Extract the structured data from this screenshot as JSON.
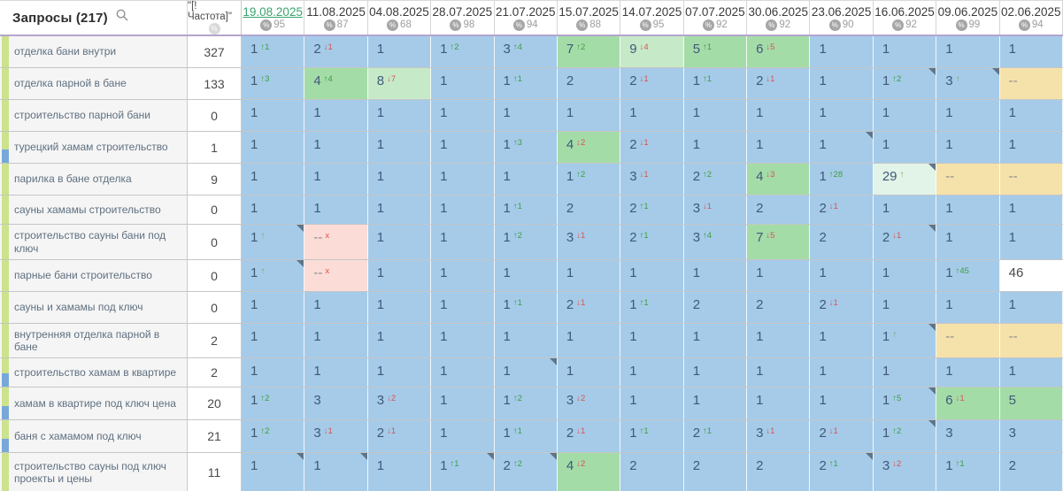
{
  "table": {
    "title": "Запросы (217)",
    "frequency_header": "\"[!Частота]\"",
    "columns": [
      {
        "date": "19.08.2025",
        "visibility": "95",
        "selected": true
      },
      {
        "date": "11.08.2025",
        "visibility": "87",
        "selected": false
      },
      {
        "date": "04.08.2025",
        "visibility": "68",
        "selected": false
      },
      {
        "date": "28.07.2025",
        "visibility": "98",
        "selected": false
      },
      {
        "date": "21.07.2025",
        "visibility": "94",
        "selected": false
      },
      {
        "date": "15.07.2025",
        "visibility": "88",
        "selected": false
      },
      {
        "date": "14.07.2025",
        "visibility": "95",
        "selected": false
      },
      {
        "date": "07.07.2025",
        "visibility": "92",
        "selected": false
      },
      {
        "date": "30.06.2025",
        "visibility": "92",
        "selected": false
      },
      {
        "date": "23.06.2025",
        "visibility": "90",
        "selected": false
      },
      {
        "date": "16.06.2025",
        "visibility": "92",
        "selected": false
      },
      {
        "date": "09.06.2025",
        "visibility": "99",
        "selected": false
      },
      {
        "date": "02.06.2025",
        "visibility": "94",
        "selected": false
      }
    ],
    "cell_format": "position|direction(u=improved,d=worsened,e=entered,x=dropped)|change|m=note-marker",
    "rows": [
      {
        "keyword": "отделка бани внутри",
        "frequency": "327",
        "tag": false,
        "cells": [
          "1|u|1|",
          "2|d|1|",
          "1|||",
          "1|u|2|",
          "3|u|4|",
          "7|u|2|",
          "9|d|4|",
          "5|u|1|",
          "6|d|5|",
          "1|||",
          "1|||",
          "1|||",
          "1|||"
        ]
      },
      {
        "keyword": "отделка парной в бане",
        "frequency": "133",
        "tag": false,
        "cells": [
          "1|u|3|",
          "4|u|4|",
          "8|d|7|",
          "1|||",
          "1|u|1|",
          "2|||",
          "2|d|1|",
          "1|u|1|",
          "2|d|1|",
          "1|||",
          "1|u|2|m",
          "3|e||m",
          "--|||"
        ]
      },
      {
        "keyword": "строительство парной бани",
        "frequency": "0",
        "tag": false,
        "cells": [
          "1|||",
          "1|||",
          "1|||",
          "1|||",
          "1|||",
          "1|||",
          "1|||",
          "1|||",
          "1|||",
          "1|||",
          "1|||",
          "1|||",
          "1|||"
        ]
      },
      {
        "keyword": "турецкий хамам строительство",
        "frequency": "1",
        "tag": true,
        "cells": [
          "1|||",
          "1|||",
          "1|||",
          "1|||",
          "1|u|3|",
          "4|d|2|",
          "2|d|1|",
          "1|||",
          "1|||",
          "1|||m",
          "1|||",
          "1|||",
          "1|||"
        ]
      },
      {
        "keyword": "парилка в бане отделка",
        "frequency": "9",
        "tag": false,
        "cells": [
          "1|||",
          "1|||",
          "1|||",
          "1|||",
          "1|||",
          "1|u|2|",
          "3|d|1|",
          "2|u|2|",
          "4|d|3|",
          "1|u|28|",
          "29|e||m",
          "--|||",
          "--|||"
        ]
      },
      {
        "keyword": "сауны хамамы строительство",
        "frequency": "0",
        "tag": false,
        "cells": [
          "1|||",
          "1|||",
          "1|||",
          "1|||",
          "1|u|1|",
          "2|||",
          "2|u|1|",
          "3|d|1|",
          "2|||",
          "2|d|1|",
          "1|||",
          "1|||",
          "1|||"
        ]
      },
      {
        "keyword": "строительство сауны бани под ключ",
        "frequency": "0",
        "tag": false,
        "cells": [
          "1|e||m",
          "--|x||",
          "1|||",
          "1|||",
          "1|u|2|",
          "3|d|1|",
          "2|u|1|",
          "3|u|4|",
          "7|d|5|",
          "2|||",
          "2|d|1|m",
          "1|||",
          "1|||"
        ]
      },
      {
        "keyword": "парные бани строительство",
        "frequency": "0",
        "tag": false,
        "cells": [
          "1|e||m",
          "--|x||",
          "1|||",
          "1|||",
          "1|||",
          "1|||",
          "1|||",
          "1|||",
          "1|||",
          "1|||",
          "1|||",
          "1|u|45|",
          "46|||"
        ]
      },
      {
        "keyword": "сауны и хамамы под ключ",
        "frequency": "0",
        "tag": false,
        "cells": [
          "1|||",
          "1|||",
          "1|||",
          "1|||",
          "1|u|1|",
          "2|d|1|",
          "1|u|1|",
          "2|||",
          "2|||",
          "2|d|1|",
          "1|||",
          "1|||",
          "1|||"
        ]
      },
      {
        "keyword": "внутренняя отделка парной в бане",
        "frequency": "2",
        "tag": false,
        "cells": [
          "1|||",
          "1|||",
          "1|||",
          "1|||",
          "1|||",
          "1|||",
          "1|||",
          "1|||",
          "1|||",
          "1|||",
          "1|e||m",
          "--|||",
          "--|||"
        ]
      },
      {
        "keyword": "строительство хамам в квартире",
        "frequency": "2",
        "tag": true,
        "cells": [
          "1|||",
          "1|||",
          "1|||",
          "1|||",
          "1|||m",
          "1|||",
          "1|||",
          "1|||",
          "1|||",
          "1|||",
          "1|||",
          "1|||",
          "1|||"
        ]
      },
      {
        "keyword": "хамам в квартире под ключ цена",
        "frequency": "20",
        "tag": true,
        "cells": [
          "1|u|2|",
          "3|||",
          "3|d|2|",
          "1|||",
          "1|u|2|",
          "3|d|2|",
          "1|||",
          "1|||",
          "1|||",
          "1|||",
          "1|u|5|m",
          "6|d|1|",
          "5|||"
        ]
      },
      {
        "keyword": "баня с хамамом под ключ",
        "frequency": "21",
        "tag": true,
        "cells": [
          "1|u|2|",
          "3|d|1|",
          "2|d|1|",
          "1|||",
          "1|u|1|",
          "2|d|1|",
          "1|u|1|",
          "2|u|1|",
          "3|d|1|",
          "2|d|1|",
          "1|u|2|m",
          "3|||",
          "3|||"
        ]
      },
      {
        "keyword": "строительство сауны под ключ проекты и цены",
        "frequency": "11",
        "tag": false,
        "cells": [
          "1|||m",
          "1|||m",
          "1|||",
          "1|u|1|m",
          "2|u|2|m",
          "4|d|2|",
          "2|||",
          "2|||",
          "2|||",
          "2|u|1|m",
          "3|d|2|",
          "1|u|1|",
          "2|||"
        ]
      }
    ],
    "colors": {
      "top3_blue": "#a5cbe9",
      "top7_green": "#a4dca8",
      "top10_light_green": "#c6eac8",
      "top30_mint": "#e2f3e8",
      "not_found_yellow": "#f5e2ab",
      "dropped_pink": "#fbdcd7",
      "selected_date_green": "#3aa46d",
      "change_up_green": "#3f9e3f",
      "change_down_red": "#d9534f",
      "header_divider_purple": "#b4a5cf"
    }
  }
}
